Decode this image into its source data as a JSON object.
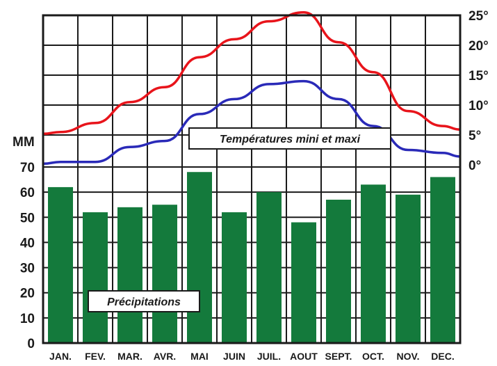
{
  "chart_data": {
    "type": "bar+line",
    "categories": [
      "JAN.",
      "FEV.",
      "MAR.",
      "AVR.",
      "MAI",
      "JUIN",
      "JUIL.",
      "AOUT",
      "SEPT.",
      "OCT.",
      "NOV.",
      "DEC."
    ],
    "precipitation": {
      "name": "Précipitations",
      "unit_label": "MM",
      "values": [
        62,
        52,
        54,
        55,
        68,
        52,
        60,
        48,
        57,
        63,
        59,
        66
      ],
      "ylim": [
        0,
        70
      ],
      "ticks": [
        "0",
        "10",
        "20",
        "30",
        "40",
        "50",
        "60",
        "70"
      ],
      "color": "#147a3c"
    },
    "temperature": {
      "label": "Températures mini et maxi",
      "ylim": [
        0,
        25
      ],
      "ticks": [
        "0°",
        "5°",
        "10°",
        "15°",
        "20°",
        "25°"
      ],
      "series": [
        {
          "values": [
            5.5,
            7,
            10.5,
            13,
            18,
            21,
            24,
            25.5,
            20.5,
            15.5,
            9,
            6.5
          ],
          "color": "#e8141b"
        },
        {
          "values": [
            0.5,
            0.5,
            3,
            4,
            8.5,
            11,
            13.5,
            14,
            11,
            6.5,
            2.5,
            2
          ],
          "color": "#2a2ab8"
        }
      ]
    },
    "grid": true
  }
}
